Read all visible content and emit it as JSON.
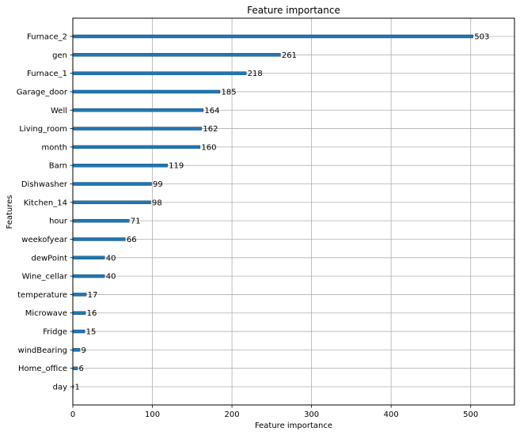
{
  "chart_data": {
    "type": "bar",
    "orientation": "horizontal",
    "title": "Feature importance",
    "xlabel": "Feature importance",
    "ylabel": "Features",
    "xlim": [
      0,
      555
    ],
    "xticks": [
      0,
      100,
      200,
      300,
      400,
      500
    ],
    "grid": true,
    "bar_color": "#1f77b4",
    "categories": [
      "Furnace_2",
      "gen",
      "Furnace_1",
      "Garage_door",
      "Well",
      "Living_room",
      "month",
      "Barn",
      "Dishwasher",
      "Kitchen_14",
      "hour",
      "weekofyear",
      "dewPoint",
      "Wine_cellar",
      "temperature",
      "Microwave",
      "Fridge",
      "windBearing",
      "Home_office",
      "day"
    ],
    "values": [
      503,
      261,
      218,
      185,
      164,
      162,
      160,
      119,
      99,
      98,
      71,
      66,
      40,
      40,
      17,
      16,
      15,
      9,
      6,
      1
    ]
  }
}
